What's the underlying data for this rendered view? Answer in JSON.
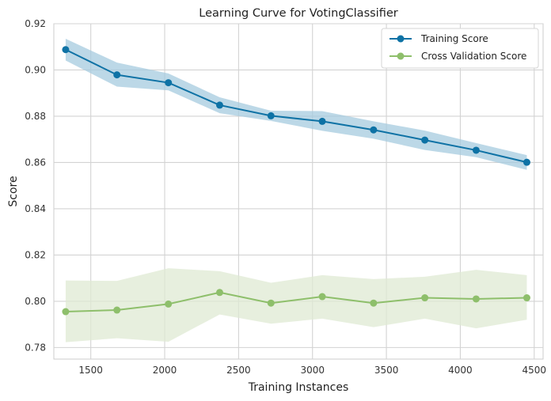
{
  "chart_data": {
    "type": "line",
    "title": "Learning Curve for VotingClassifier",
    "xlabel": "Training Instances",
    "ylabel": "Score",
    "xlim": [
      1250,
      4560
    ],
    "ylim": [
      0.775,
      0.92
    ],
    "xticks": [
      1500,
      2000,
      2500,
      3000,
      3500,
      4000,
      4500
    ],
    "yticks": [
      0.78,
      0.8,
      0.82,
      0.84,
      0.86,
      0.88,
      0.9,
      0.92
    ],
    "xtick_labels": [
      "1500",
      "2000",
      "2500",
      "3000",
      "3500",
      "4000",
      "4500"
    ],
    "ytick_labels": [
      "0.78",
      "0.80",
      "0.82",
      "0.84",
      "0.86",
      "0.88",
      "0.90",
      "0.92"
    ],
    "grid": true,
    "legend_position": "top-right",
    "x": [
      1330,
      1677,
      2025,
      2372,
      2719,
      3066,
      3413,
      3760,
      4107,
      4450
    ],
    "series": [
      {
        "name": "Training Score",
        "color": "#0e72a5",
        "band_color": "#a6cbdf",
        "values": [
          0.9088,
          0.8979,
          0.8945,
          0.8848,
          0.8802,
          0.8778,
          0.8741,
          0.8697,
          0.8653,
          0.8601
        ],
        "upper": [
          0.9135,
          0.9032,
          0.8985,
          0.8882,
          0.8824,
          0.8822,
          0.8778,
          0.8738,
          0.8684,
          0.8632
        ],
        "lower": [
          0.9041,
          0.8928,
          0.8912,
          0.8813,
          0.878,
          0.8737,
          0.8703,
          0.8654,
          0.8623,
          0.8568
        ]
      },
      {
        "name": "Cross Validation Score",
        "color": "#8ebf6b",
        "band_color": "#dfe9d3",
        "values": [
          0.7955,
          0.7962,
          0.7988,
          0.8038,
          0.7992,
          0.802,
          0.7992,
          0.8015,
          0.801,
          0.8015
        ],
        "upper": [
          0.809,
          0.8088,
          0.8143,
          0.813,
          0.808,
          0.8113,
          0.8096,
          0.8106,
          0.8136,
          0.8113
        ],
        "lower": [
          0.7823,
          0.784,
          0.7825,
          0.7943,
          0.7903,
          0.7925,
          0.7888,
          0.7925,
          0.7883,
          0.792
        ]
      }
    ]
  }
}
